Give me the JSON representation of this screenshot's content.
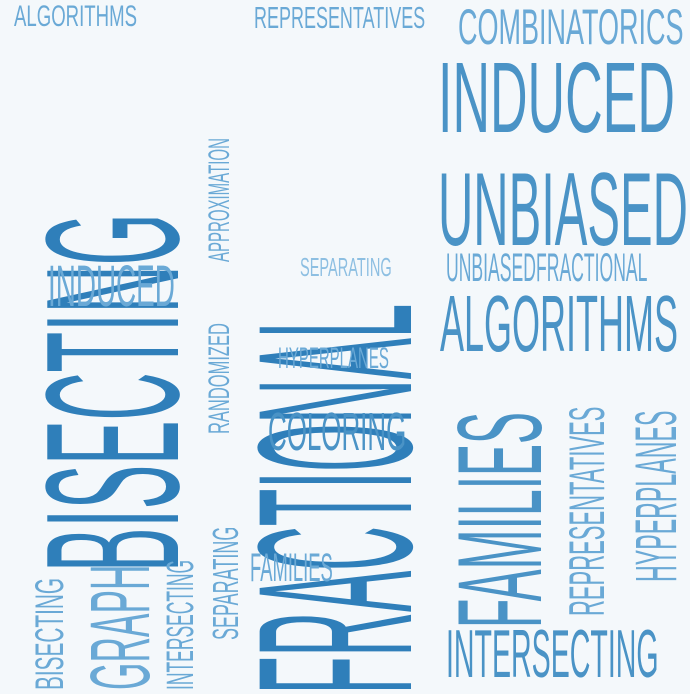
{
  "words": [
    "ALGORITHMS",
    "REPRESENTATIVES",
    "COMBINATORICS",
    "INDUCED",
    "BISECTING",
    "FRACTIONAL",
    "UNBIASED",
    "APPROXIMATION",
    "SEPARATING",
    "UNBIASEDFRACTIONAL",
    "INDUCED",
    "RANDOMIZED",
    "ALGORITHMS",
    "HYPERPLANES",
    "COLORING",
    "FAMILIES",
    "REPRESENTATIVES",
    "HYPERPLANES",
    "BISECTING",
    "GRAPH",
    "INTERSECTING",
    "SEPARATING",
    "FAMILIES",
    "BISECTING",
    "INTERSECTING"
  ]
}
